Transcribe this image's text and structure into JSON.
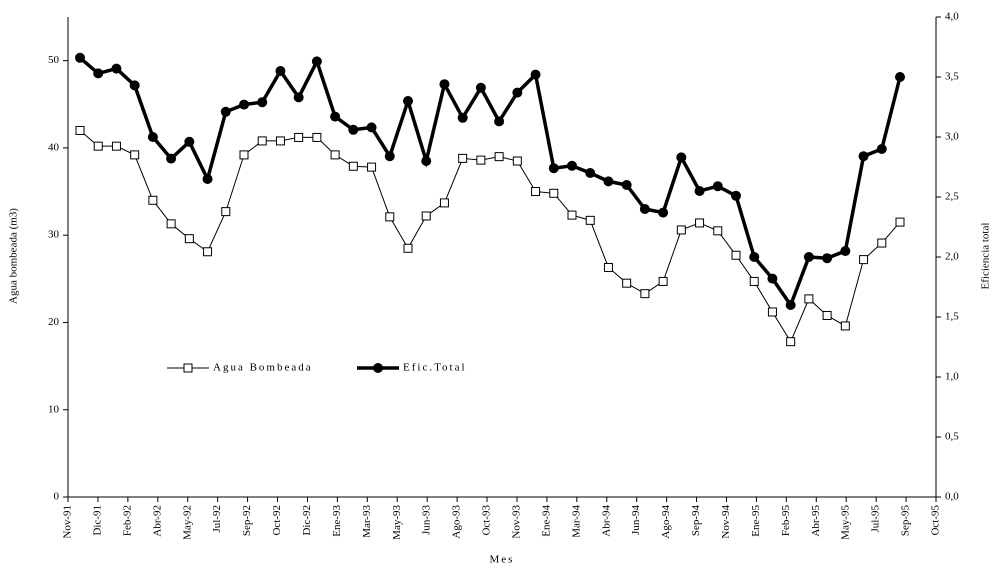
{
  "chart_data": {
    "type": "line",
    "x_label": "Mes",
    "y_label": "Agua bombeada (m3)",
    "y2_label": "Eficiencia total",
    "x_tick_labels": [
      "Nov-91",
      "Dic-91",
      "Feb-92",
      "Abr-92",
      "May-92",
      "Jul-92",
      "Sep-92",
      "Oct-92",
      "Dic-92",
      "Ene-93",
      "Mar-93",
      "May-93",
      "Jun-93",
      "Ago-93",
      "Oct-93",
      "Nov-93",
      "Ene-94",
      "Mar-94",
      "Abr-94",
      "Jun-94",
      "Ago-94",
      "Sep-94",
      "Nov-94",
      "Ene-95",
      "Feb-95",
      "Abr-95",
      "May-95",
      "Jul-95",
      "Sep-95",
      "Oct-95"
    ],
    "ylim": [
      0,
      55
    ],
    "yticks": [
      0,
      10,
      20,
      30,
      40,
      50
    ],
    "y2lim": [
      0,
      4
    ],
    "y2ticks": [
      {
        "value": 0,
        "label": "0,0"
      },
      {
        "value": 0.5,
        "label": "0,5"
      },
      {
        "value": 1,
        "label": "1,0"
      },
      {
        "value": 1.5,
        "label": "1,5"
      },
      {
        "value": 2,
        "label": "2,0"
      },
      {
        "value": 2.5,
        "label": "2,5"
      },
      {
        "value": 3,
        "label": "3,0"
      },
      {
        "value": 3.5,
        "label": "3,5"
      },
      {
        "value": 4,
        "label": "4,0"
      }
    ],
    "series": [
      {
        "name": "Agua Bombeada",
        "color": "#000000",
        "marker": "square",
        "values": [
          42,
          40.2,
          40.2,
          39.2,
          34,
          31.3,
          29.6,
          28.1,
          32.7,
          39.2,
          40.8,
          40.8,
          41.2,
          41.2,
          39.2,
          37.9,
          37.8,
          32.1,
          28.5,
          32.2,
          33.7,
          38.8,
          38.6,
          39.0,
          38.5,
          35.0,
          34.8,
          32.3,
          31.7,
          26.3,
          24.5,
          23.3,
          24.7,
          30.6,
          31.4,
          30.5,
          27.7,
          24.7,
          21.2,
          17.8,
          22.7,
          20.8,
          19.6,
          27.2,
          29.1,
          31.5
        ]
      },
      {
        "name": "Efic.Total",
        "color": "#000000",
        "marker": "circle",
        "axis": "y2",
        "values": [
          3.66,
          3.53,
          3.57,
          3.43,
          3.0,
          2.82,
          2.96,
          2.65,
          3.21,
          3.27,
          3.29,
          3.55,
          3.33,
          3.63,
          3.17,
          3.06,
          3.08,
          2.84,
          3.3,
          2.8,
          3.44,
          3.16,
          3.41,
          3.13,
          3.37,
          3.52,
          2.74,
          2.76,
          2.7,
          2.63,
          2.6,
          2.4,
          2.37,
          2.83,
          2.55,
          2.59,
          2.51,
          2.0,
          1.82,
          1.6,
          2.0,
          1.99,
          2.05,
          2.84,
          2.9,
          3.5
        ]
      }
    ]
  }
}
